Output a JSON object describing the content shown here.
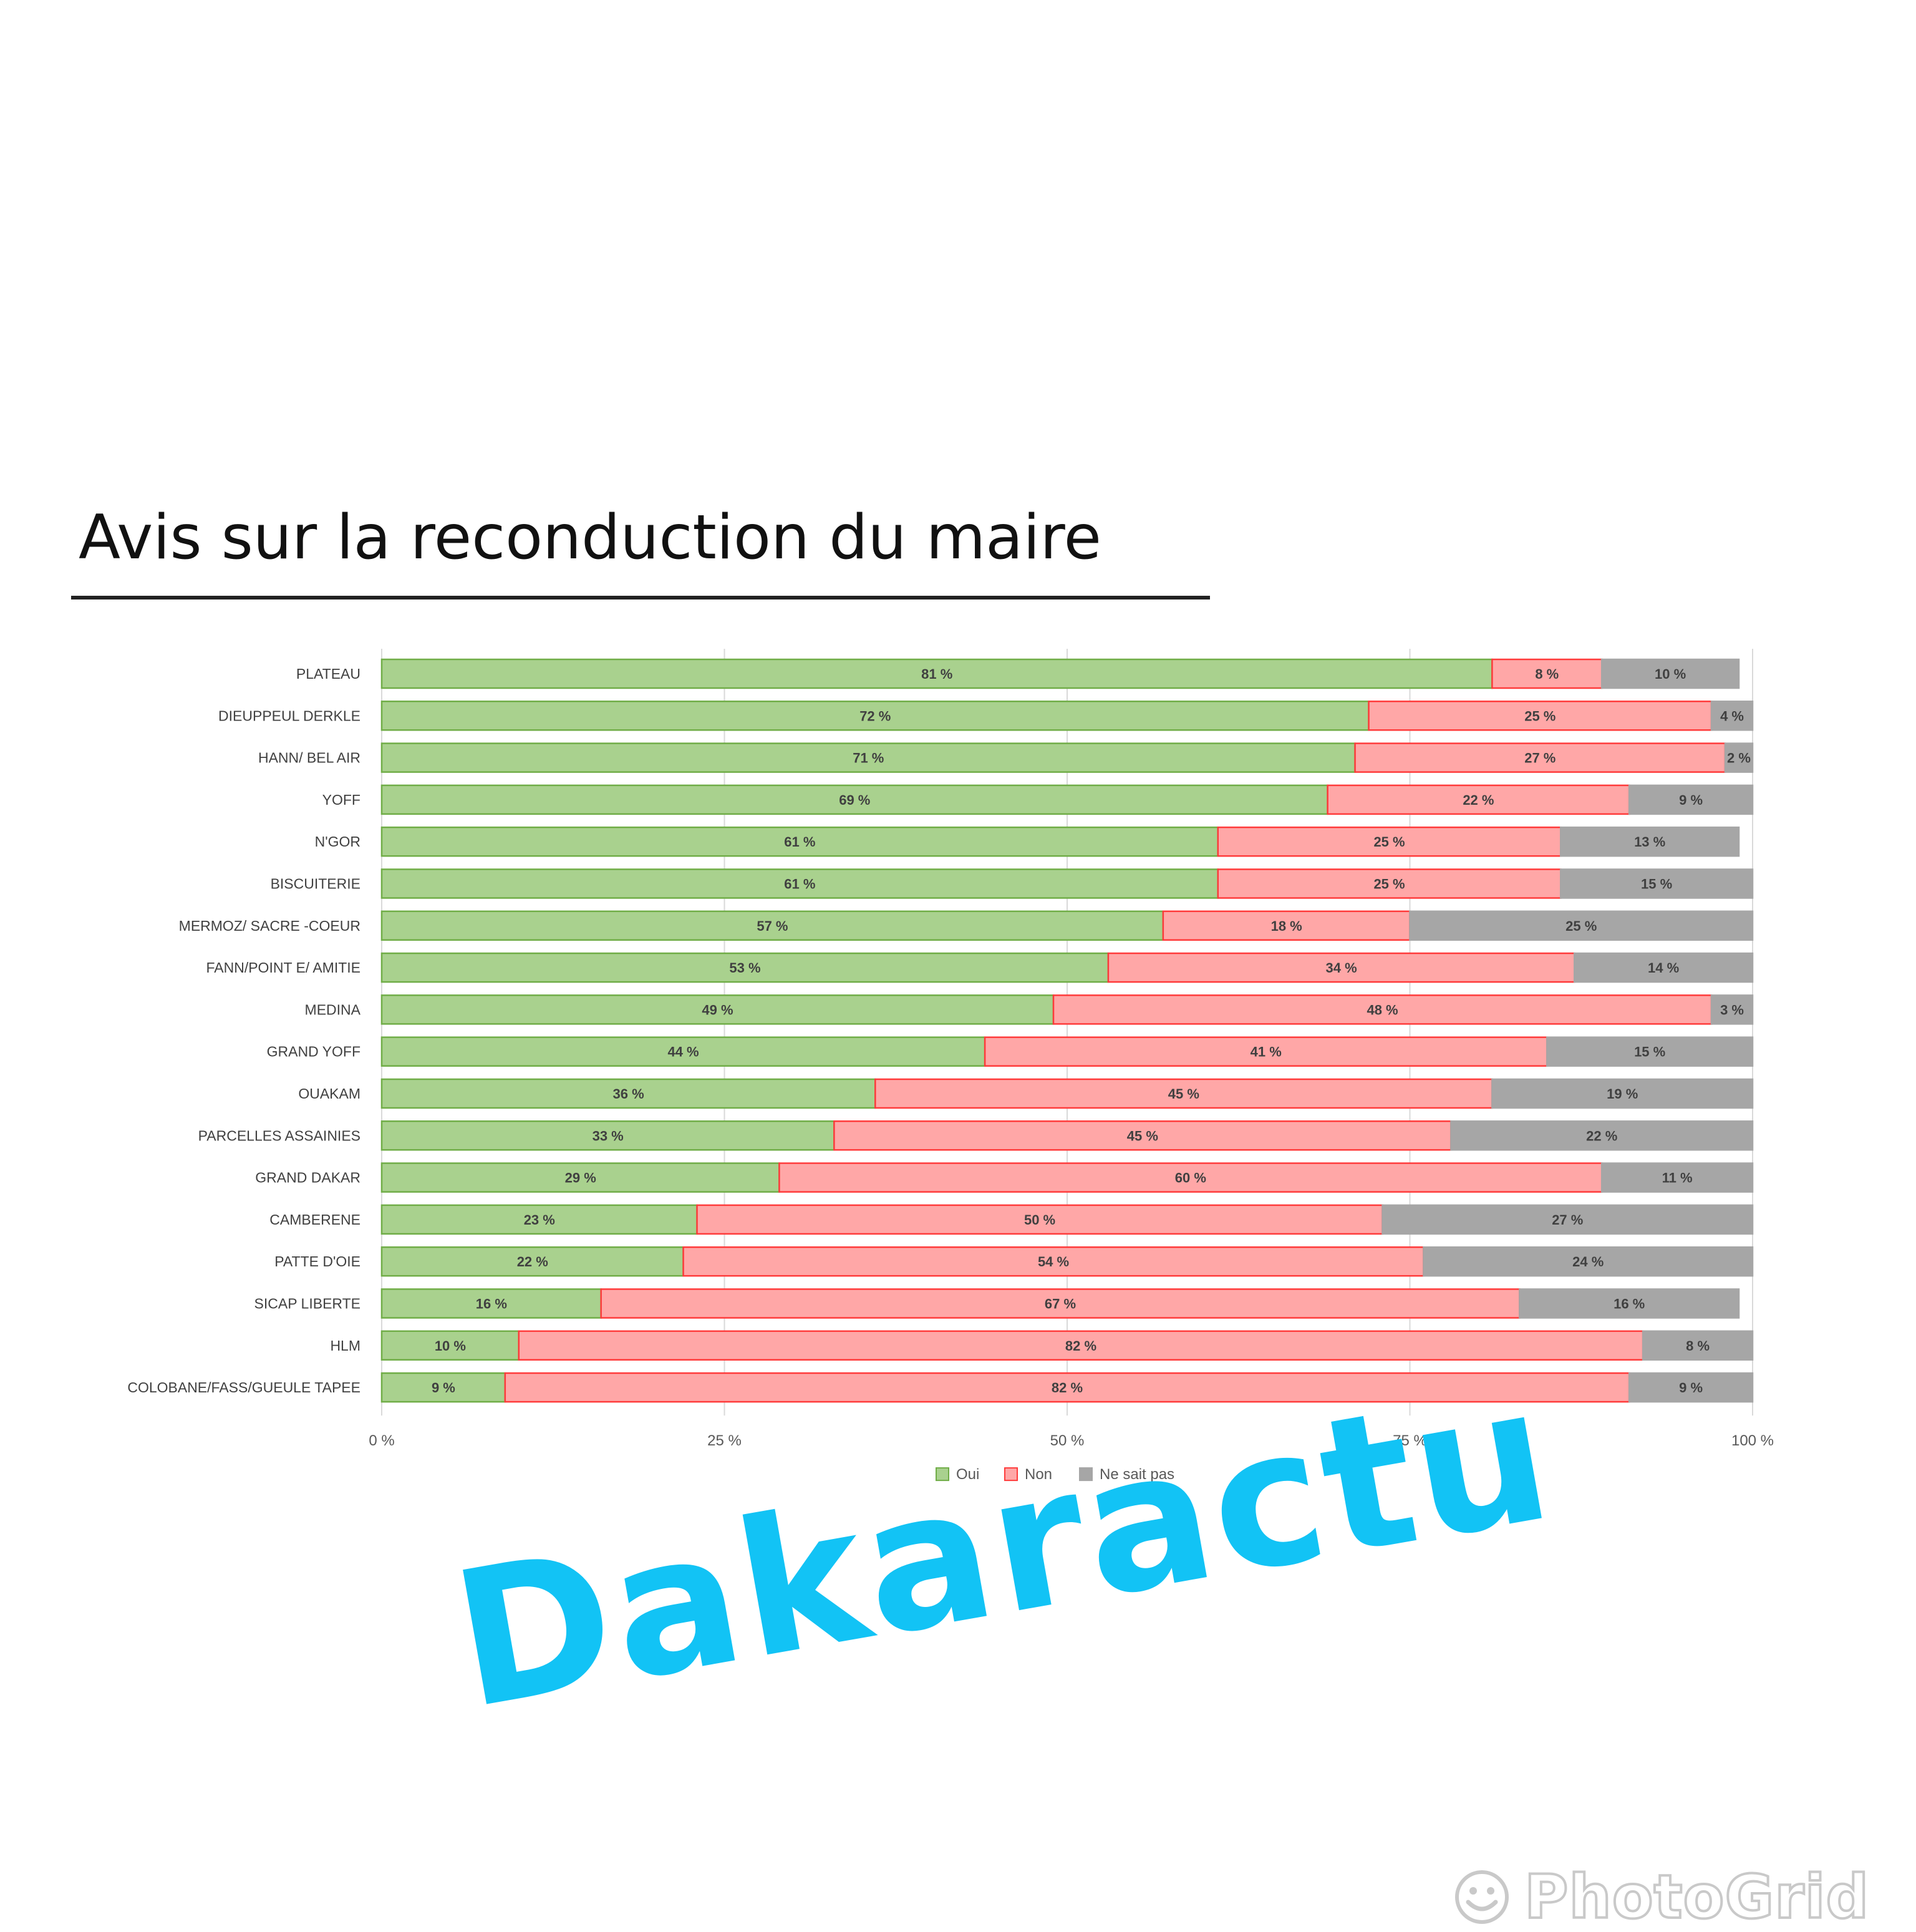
{
  "chart_data": {
    "type": "bar",
    "orientation": "horizontal",
    "stacked": "percent",
    "title": "Avis sur la reconduction du maire",
    "categories": [
      "PLATEAU",
      "DIEUPPEUL DERKLE",
      "HANN/ BEL AIR",
      "YOFF",
      "N'GOR",
      "BISCUITERIE",
      "MERMOZ/ SACRE -COEUR",
      "FANN/POINT E/ AMITIE",
      "MEDINA",
      "GRAND YOFF",
      "OUAKAM",
      "PARCELLES ASSAINIES",
      "GRAND DAKAR",
      "CAMBERENE",
      "PATTE D'OIE",
      "SICAP LIBERTE",
      "HLM",
      "COLOBANE/FASS/GUEULE TAPEE"
    ],
    "series": [
      {
        "name": "Oui",
        "color": "#a9d18e",
        "edge": "#70ad47",
        "values": [
          81,
          72,
          71,
          69,
          61,
          61,
          57,
          53,
          49,
          44,
          36,
          33,
          29,
          23,
          22,
          16,
          10,
          9
        ]
      },
      {
        "name": "Non",
        "color": "#ffa7a7",
        "edge": "#ff3b3b",
        "values": [
          8,
          25,
          27,
          22,
          25,
          25,
          18,
          34,
          48,
          41,
          45,
          45,
          60,
          50,
          54,
          67,
          82,
          82
        ]
      },
      {
        "name": "Ne sait pas",
        "color": "#a6a6a6",
        "edge": "#a6a6a6",
        "values": [
          10,
          4,
          2,
          9,
          13,
          15,
          25,
          14,
          3,
          15,
          19,
          22,
          11,
          27,
          24,
          16,
          8,
          9
        ]
      }
    ],
    "data_labels": [
      [
        "81 %",
        "72 %",
        "71 %",
        "69 %",
        "61 %",
        "61 %",
        "57 %",
        "53 %",
        "49 %",
        "44 %",
        "36 %",
        "33 %",
        "29 %",
        "23 %",
        "22 %",
        "16 %",
        "10 %",
        "9 %"
      ],
      [
        "8 %",
        "25 %",
        "27 %",
        "22 %",
        "25 %",
        "25 %",
        "18 %",
        "34 %",
        "48 %",
        "41 %",
        "45 %",
        "45 %",
        "60 %",
        "50 %",
        "54 %",
        "67 %",
        "82 %",
        "82 %"
      ],
      [
        "10 %",
        "4 %",
        "2 %",
        "9 %",
        "13 %",
        "15 %",
        "25 %",
        "14 %",
        "3 %",
        "15 %",
        "19 %",
        "22 %",
        "11 %",
        "27 %",
        "24 %",
        "16 %",
        "8 %",
        "9 %"
      ]
    ],
    "xlim": [
      0,
      100
    ],
    "x_ticks": [
      0,
      25,
      50,
      75,
      100
    ],
    "x_tick_labels": [
      "0 %",
      "25 %",
      "50 %",
      "75 %",
      "100 %"
    ],
    "grid": true,
    "legend_position": "bottom"
  },
  "watermark": "Dakaractu",
  "logo_text": "PhotoGrid"
}
